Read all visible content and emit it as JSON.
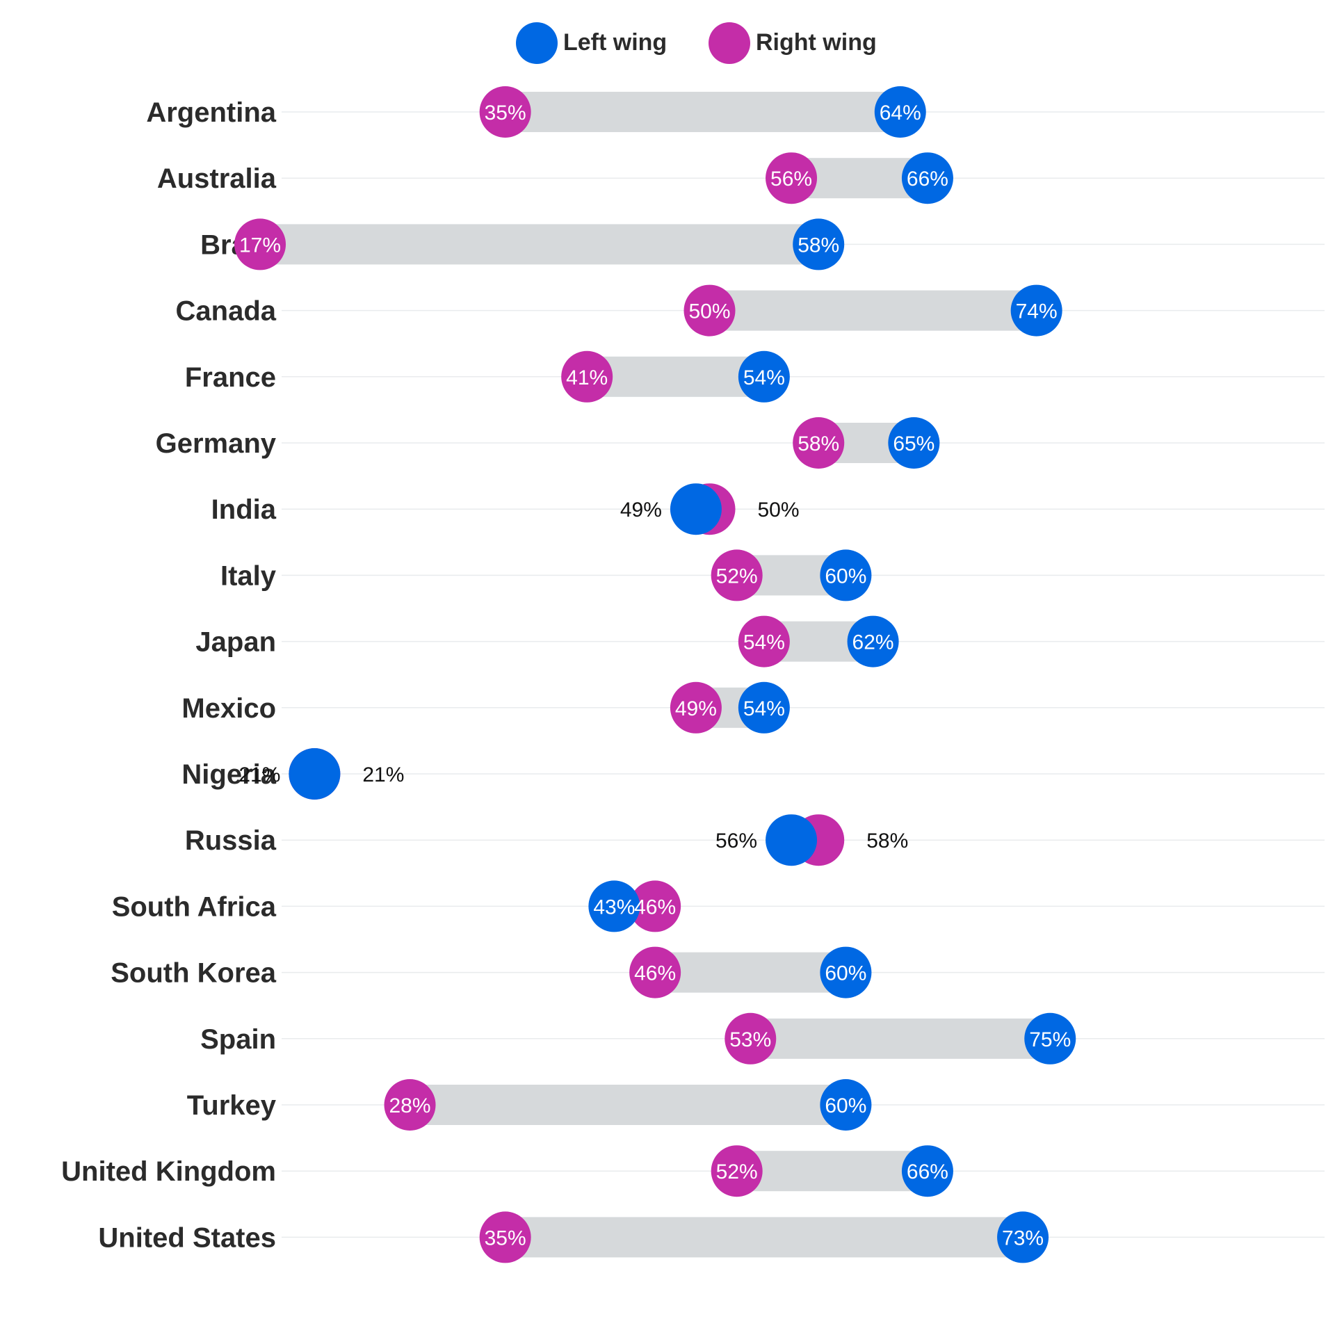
{
  "colors": {
    "left": "#0068E3",
    "right": "#C42DA8",
    "range": "#D6D9DB",
    "gridline": "#E9EBED"
  },
  "legend": [
    {
      "label": "Left wing",
      "color": "#0068E3"
    },
    {
      "label": "Right wing",
      "color": "#C42DA8"
    }
  ],
  "chart_data": {
    "type": "dumbbell",
    "xlim": [
      0,
      100
    ],
    "grid": "horizontal row lines",
    "legend_position": "top-center",
    "series": [
      {
        "name": "Left wing",
        "key": "left"
      },
      {
        "name": "Right wing",
        "key": "right"
      }
    ],
    "rows": [
      {
        "category": "Argentina",
        "left": 64,
        "right": 35,
        "left_label": "64%",
        "right_label": "35%"
      },
      {
        "category": "Australia",
        "left": 66,
        "right": 56,
        "left_label": "66%",
        "right_label": "56%"
      },
      {
        "category": "Brazil",
        "left": 58,
        "right": 17,
        "left_label": "58%",
        "right_label": "17%"
      },
      {
        "category": "Canada",
        "left": 74,
        "right": 50,
        "left_label": "74%",
        "right_label": "50%"
      },
      {
        "category": "France",
        "left": 54,
        "right": 41,
        "left_label": "54%",
        "right_label": "41%"
      },
      {
        "category": "Germany",
        "left": 65,
        "right": 58,
        "left_label": "65%",
        "right_label": "58%"
      },
      {
        "category": "India",
        "left": 49,
        "right": 50,
        "left_label": "49%",
        "right_label": "50%"
      },
      {
        "category": "Italy",
        "left": 60,
        "right": 52,
        "left_label": "60%",
        "right_label": "52%"
      },
      {
        "category": "Japan",
        "left": 62,
        "right": 54,
        "left_label": "62%",
        "right_label": "54%"
      },
      {
        "category": "Mexico",
        "left": 54,
        "right": 49,
        "left_label": "54%",
        "right_label": "49%"
      },
      {
        "category": "Nigeria",
        "left": 21,
        "right": 21,
        "left_label": "21%",
        "right_label": "21%"
      },
      {
        "category": "Russia",
        "left": 56,
        "right": 58,
        "left_label": "56%",
        "right_label": "58%"
      },
      {
        "category": "South Africa",
        "left": 43,
        "right": 46,
        "left_label": "43%",
        "right_label": "46%"
      },
      {
        "category": "South Korea",
        "left": 60,
        "right": 46,
        "left_label": "60%",
        "right_label": "46%"
      },
      {
        "category": "Spain",
        "left": 75,
        "right": 53,
        "left_label": "75%",
        "right_label": "53%"
      },
      {
        "category": "Turkey",
        "left": 60,
        "right": 28,
        "left_label": "60%",
        "right_label": "28%"
      },
      {
        "category": "United Kingdom",
        "left": 66,
        "right": 52,
        "left_label": "66%",
        "right_label": "52%"
      },
      {
        "category": "United States",
        "left": 73,
        "right": 35,
        "left_label": "73%",
        "right_label": "35%"
      }
    ]
  }
}
